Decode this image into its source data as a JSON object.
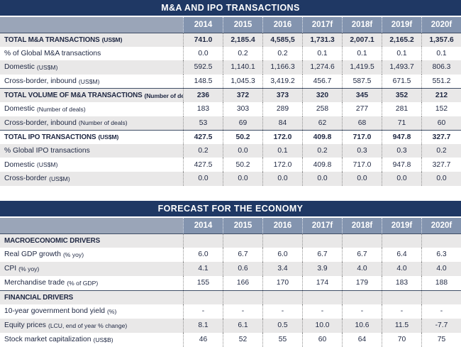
{
  "colors": {
    "title-bg": "#1F3864",
    "header-bg": "#8394AF",
    "header-label-bg": "#9AA5B8",
    "stripe-bg": "#E9E8E8",
    "topline": "#3F4E66"
  },
  "tables": [
    {
      "title": "M&A AND IPO TRANSACTIONS",
      "years": [
        "2014",
        "2015",
        "2016",
        "2017f",
        "2018f",
        "2019f",
        "2020f"
      ],
      "rows": [
        {
          "label": "TOTAL M&A TRANSACTIONS",
          "unit": "(US$M)",
          "bold": true,
          "topline": true,
          "values": [
            "741.0",
            "2,185.4",
            "4,585,5",
            "1,731.3",
            "2,007.1",
            "2,165.2",
            "1,357.6"
          ]
        },
        {
          "label": "% of Global M&A transactions",
          "unit": "",
          "values": [
            "0.0",
            "0.2",
            "0.2",
            "0.1",
            "0.1",
            "0.1",
            "0.1"
          ]
        },
        {
          "label": "Domestic",
          "unit": "(US$M)",
          "values": [
            "592.5",
            "1,140.1",
            "1,166.3",
            "1,274.6",
            "1,419.5",
            "1,493.7",
            "806.3"
          ]
        },
        {
          "label": "Cross-border, inbound",
          "unit": "(US$M)",
          "values": [
            "148.5",
            "1,045.3",
            "3,419.2",
            "456.7",
            "587.5",
            "671.5",
            "551.2"
          ]
        },
        {
          "label": "TOTAL VOLUME OF M&A TRANSACTIONS",
          "unit": "(Number of deals)",
          "bold": true,
          "topline": true,
          "values": [
            "236",
            "372",
            "373",
            "320",
            "345",
            "352",
            "212"
          ]
        },
        {
          "label": "Domestic",
          "unit": "(Number of deals)",
          "values": [
            "183",
            "303",
            "289",
            "258",
            "277",
            "281",
            "152"
          ]
        },
        {
          "label": "Cross-border, inbound",
          "unit": "(Number of deals)",
          "values": [
            "53",
            "69",
            "84",
            "62",
            "68",
            "71",
            "60"
          ]
        },
        {
          "label": "TOTAL IPO TRANSACTIONS",
          "unit": "(US$M)",
          "bold": true,
          "topline": true,
          "values": [
            "427.5",
            "50.2",
            "172.0",
            "409.8",
            "717.0",
            "947.8",
            "327.7"
          ]
        },
        {
          "label": "% Global IPO transactions",
          "unit": "",
          "values": [
            "0.2",
            "0.0",
            "0.1",
            "0.2",
            "0.3",
            "0.3",
            "0.2"
          ]
        },
        {
          "label": "Domestic",
          "unit": "(US$M)",
          "values": [
            "427.5",
            "50.2",
            "172.0",
            "409.8",
            "717.0",
            "947.8",
            "327.7"
          ]
        },
        {
          "label": "Cross-border",
          "unit": "(US$M)",
          "values": [
            "0.0",
            "0.0",
            "0.0",
            "0.0",
            "0.0",
            "0.0",
            "0.0"
          ]
        }
      ]
    },
    {
      "title": "FORECAST FOR THE ECONOMY",
      "years": [
        "2014",
        "2015",
        "2016",
        "2017f",
        "2018f",
        "2019f",
        "2020f"
      ],
      "rows": [
        {
          "label": "MACROECONOMIC DRIVERS",
          "unit": "",
          "bold": true,
          "topline": true,
          "values": [
            "",
            "",
            "",
            "",
            "",
            "",
            ""
          ]
        },
        {
          "label": "Real GDP growth",
          "unit": "(% yoy)",
          "values": [
            "6.0",
            "6.7",
            "6.0",
            "6.7",
            "6.7",
            "6.4",
            "6.3"
          ]
        },
        {
          "label": "CPI",
          "unit": "(% yoy)",
          "values": [
            "4.1",
            "0.6",
            "3.4",
            "3.9",
            "4.0",
            "4.0",
            "4.0"
          ]
        },
        {
          "label": "Merchandise trade",
          "unit": "(% of GDP)",
          "values": [
            "155",
            "166",
            "170",
            "174",
            "179",
            "183",
            "188"
          ]
        },
        {
          "label": "FINANCIAL DRIVERS",
          "unit": "",
          "bold": true,
          "topline": true,
          "values": [
            "",
            "",
            "",
            "",
            "",
            "",
            ""
          ]
        },
        {
          "label": "10-year government bond yield",
          "unit": "(%)",
          "values": [
            "-",
            "-",
            "-",
            "-",
            "-",
            "-",
            "-"
          ]
        },
        {
          "label": "Equity prices",
          "unit": "(LCU, end of year % change)",
          "values": [
            "8.1",
            "6.1",
            "0.5",
            "10.0",
            "10.6",
            "11.5",
            "-7.7"
          ]
        },
        {
          "label": "Stock market capitalization",
          "unit": "(US$B)",
          "values": [
            "46",
            "52",
            "55",
            "60",
            "64",
            "70",
            "75"
          ]
        }
      ]
    }
  ]
}
